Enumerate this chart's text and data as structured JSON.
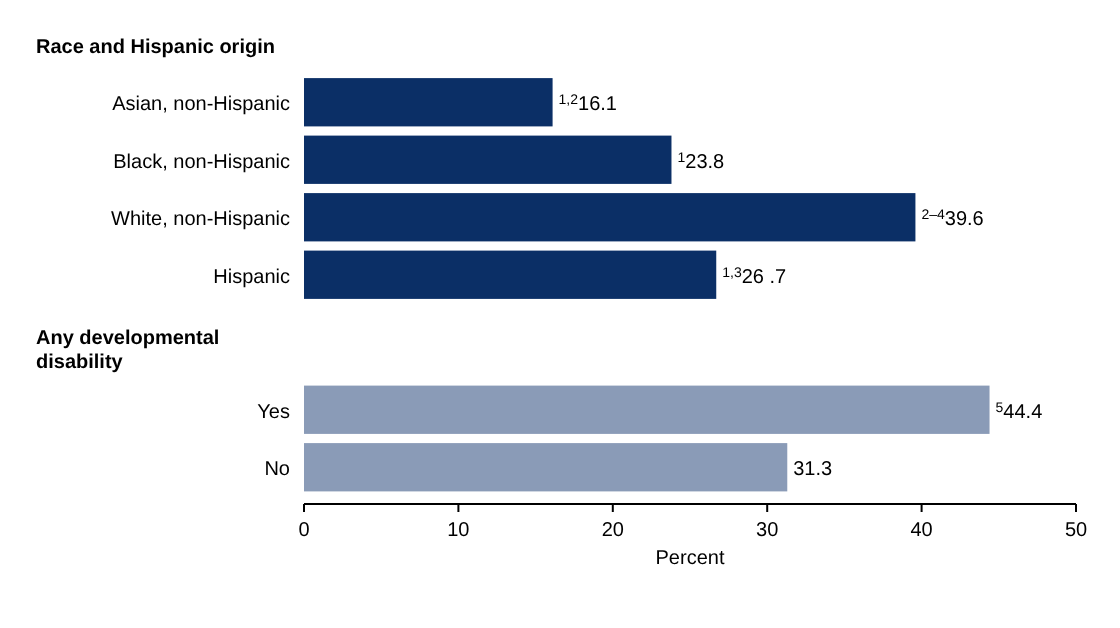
{
  "chart_data": {
    "type": "bar",
    "orientation": "horizontal",
    "categories": [
      null,
      "Asian, non-Hispanic",
      "Black, non-Hispanic",
      "White, non-Hispanic",
      "Hispanic",
      null,
      "Yes",
      "No"
    ],
    "annotations": [
      "Race and Hispanic origin",
      "Any developmental disability"
    ],
    "values": [
      null,
      16.1,
      23.8,
      39.6,
      26.7,
      null,
      44.4,
      31.3
    ],
    "colors": [
      null,
      "#0b2f66",
      "#0b2f66",
      "#0b2f66",
      "#0b2f66",
      null,
      "#8a9bb7",
      "#8a9bb7"
    ],
    "value_labels": [
      null,
      "$^{1,2}$16.1",
      "$^{1}$23.8",
      "$^{2–4}$39.6",
      "$^{1,3}$26 .7",
      null,
      "$^{5}$44.4",
      "31.3"
    ],
    "xlim": [
      0,
      50
    ],
    "xticks": [
      0,
      10,
      20,
      30,
      40,
      50
    ],
    "xlabel": "Percent",
    "grid": false
  }
}
